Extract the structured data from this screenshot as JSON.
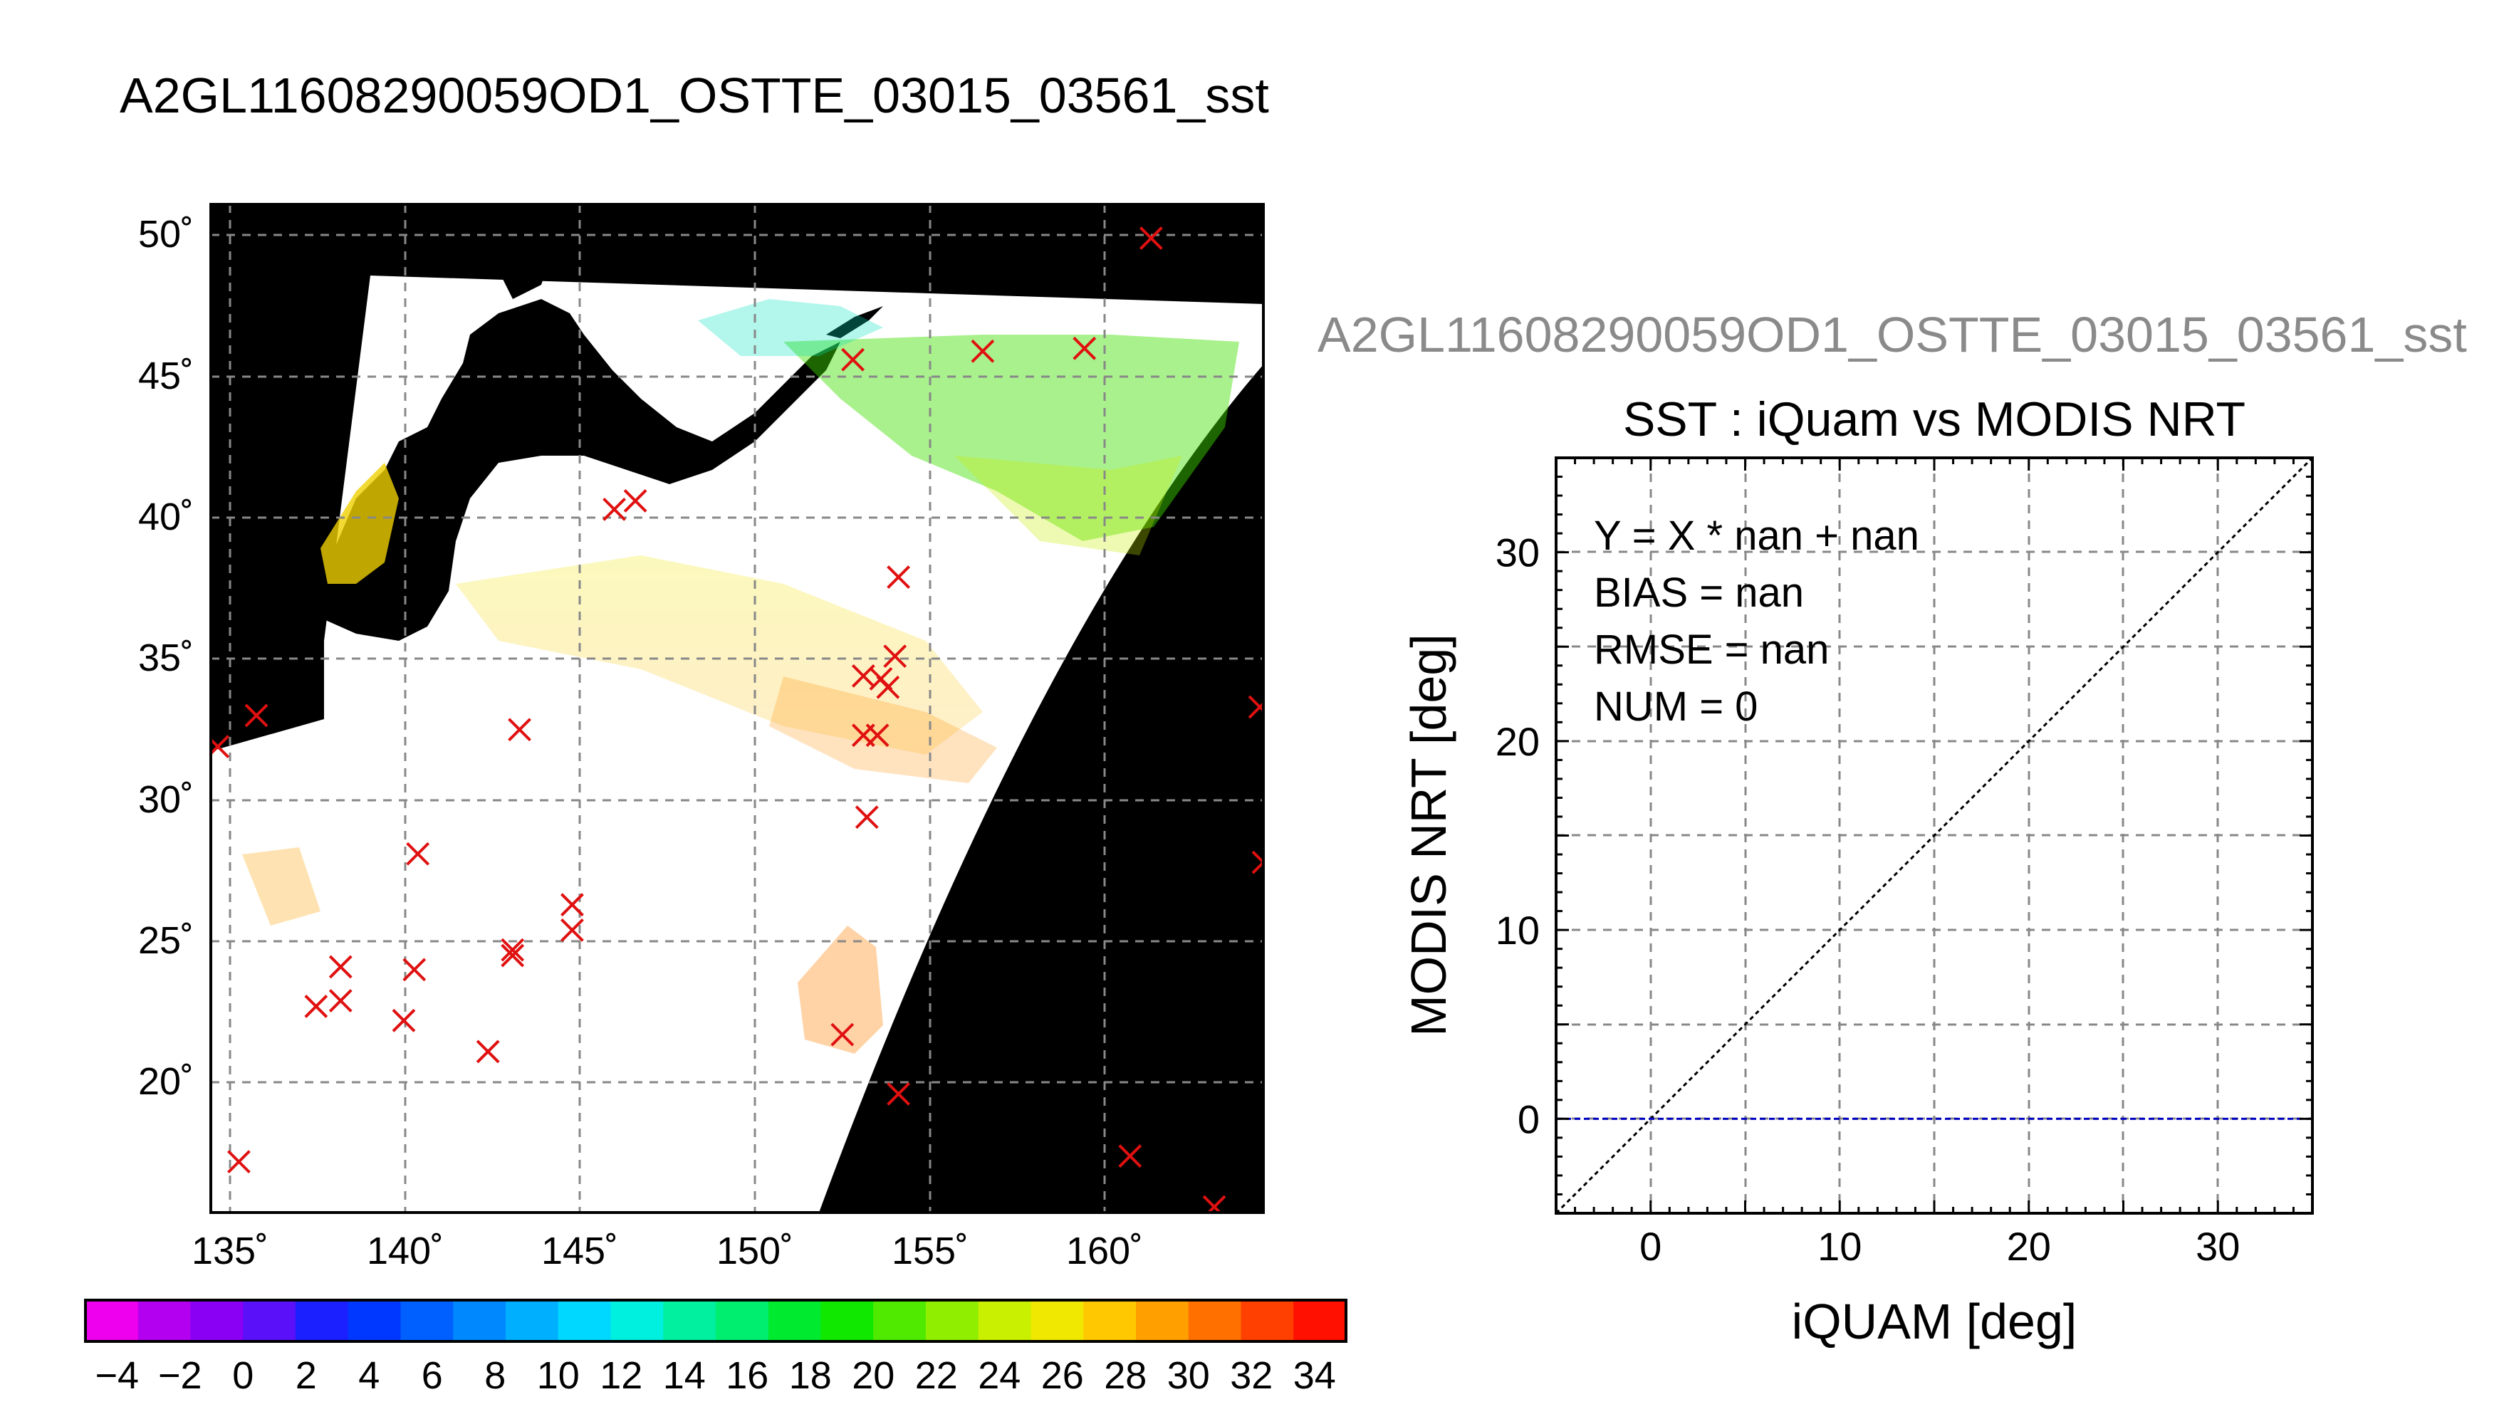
{
  "page_title": "A2GL11608290059OD1_OSTTE_03015_03561_sst",
  "chart_data": [
    {
      "type": "map",
      "title": "A2GL11608290059OD1_OSTTE_03015_03561_sst",
      "xlim": [
        134.7,
        164.7
      ],
      "ylim": [
        15.5,
        51.2
      ],
      "x_ticks": [
        135,
        140,
        145,
        150,
        155,
        160
      ],
      "x_tick_labels": [
        "135˚",
        "140˚",
        "145˚",
        "150˚",
        "155˚",
        "160˚"
      ],
      "y_ticks": [
        20,
        25,
        30,
        35,
        40,
        45,
        50
      ],
      "y_tick_labels": [
        "20˚",
        "25˚",
        "30˚",
        "35˚",
        "40˚",
        "45˚",
        "50˚"
      ],
      "grid": true,
      "background_color": "#000000",
      "swath_color": "#ffffff",
      "marker": "x",
      "marker_color": "#e01010",
      "buoy_points": [
        {
          "lon": 161.5,
          "lat": 50.0
        },
        {
          "lon": 153.0,
          "lat": 45.7
        },
        {
          "lon": 156.7,
          "lat": 46.0
        },
        {
          "lon": 159.6,
          "lat": 46.1
        },
        {
          "lon": 146.2,
          "lat": 40.4
        },
        {
          "lon": 146.8,
          "lat": 40.7
        },
        {
          "lon": 154.3,
          "lat": 38.0
        },
        {
          "lon": 153.3,
          "lat": 34.5
        },
        {
          "lon": 153.8,
          "lat": 34.4
        },
        {
          "lon": 154.2,
          "lat": 35.2
        },
        {
          "lon": 154.0,
          "lat": 34.1
        },
        {
          "lon": 164.6,
          "lat": 33.4
        },
        {
          "lon": 136.0,
          "lat": 33.1
        },
        {
          "lon": 134.9,
          "lat": 32.0
        },
        {
          "lon": 143.5,
          "lat": 32.6
        },
        {
          "lon": 153.3,
          "lat": 32.4
        },
        {
          "lon": 153.7,
          "lat": 32.4
        },
        {
          "lon": 153.4,
          "lat": 29.5
        },
        {
          "lon": 140.6,
          "lat": 28.2
        },
        {
          "lon": 164.7,
          "lat": 27.9
        },
        {
          "lon": 145.0,
          "lat": 26.4
        },
        {
          "lon": 145.0,
          "lat": 25.5
        },
        {
          "lon": 143.3,
          "lat": 24.8
        },
        {
          "lon": 143.3,
          "lat": 24.6
        },
        {
          "lon": 138.4,
          "lat": 24.2
        },
        {
          "lon": 140.5,
          "lat": 24.1
        },
        {
          "lon": 137.7,
          "lat": 22.8
        },
        {
          "lon": 138.4,
          "lat": 23.0
        },
        {
          "lon": 140.2,
          "lat": 22.3
        },
        {
          "lon": 142.6,
          "lat": 21.2
        },
        {
          "lon": 152.7,
          "lat": 21.8
        },
        {
          "lon": 154.3,
          "lat": 19.7
        },
        {
          "lon": 160.9,
          "lat": 17.5
        },
        {
          "lon": 135.5,
          "lat": 17.3
        },
        {
          "lon": 163.3,
          "lat": 15.7
        }
      ]
    },
    {
      "type": "colorbar",
      "vmin": -5,
      "vmax": 35,
      "step": 2,
      "tick_labels": [
        "−4",
        "−2",
        "0",
        "2",
        "4",
        "6",
        "8",
        "10",
        "12",
        "14",
        "16",
        "18",
        "20",
        "22",
        "24",
        "26",
        "28",
        "30",
        "32",
        "34"
      ],
      "colors": [
        "#ee00ee",
        "#b400f0",
        "#8a00f4",
        "#5a10f8",
        "#1a20ff",
        "#0038ff",
        "#0060ff",
        "#0088ff",
        "#00b0ff",
        "#00d8ff",
        "#00f0e0",
        "#00f0a0",
        "#00ee70",
        "#00ea30",
        "#10e800",
        "#50ea00",
        "#90ee00",
        "#c8f000",
        "#f0e800",
        "#ffc800",
        "#ffa000",
        "#ff7000",
        "#ff4000",
        "#ff1000"
      ]
    },
    {
      "type": "scatter",
      "supertitle": "A2GL11608290059OD1_OSTTE_03015_03561_sst",
      "title": "SST : iQuam vs MODIS NRT",
      "xlabel": "iQUAM [deg]",
      "ylabel": "MODIS NRT [deg]",
      "xlim": [
        -5,
        35
      ],
      "ylim": [
        -5,
        35
      ],
      "x_ticks": [
        0,
        10,
        20,
        30
      ],
      "y_ticks": [
        0,
        10,
        20,
        30
      ],
      "grid_step": 5,
      "grid": true,
      "reference_lines": [
        {
          "name": "1:1 line",
          "points": [
            [
              -5,
              -5
            ],
            [
              35,
              35
            ]
          ],
          "color": "#000000",
          "style": "dotted"
        },
        {
          "name": "fit",
          "points": [
            [
              -5,
              0
            ],
            [
              35,
              0
            ]
          ],
          "color": "#0000c0",
          "style": "dashed"
        }
      ],
      "points": [],
      "stats": [
        "Y = X * nan + nan",
        "BIAS = nan",
        "RMSE = nan",
        "NUM = 0"
      ]
    }
  ]
}
